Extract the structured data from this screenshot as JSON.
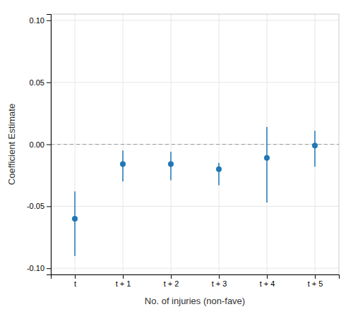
{
  "chart_data": {
    "type": "errorbar",
    "xlabel": "No. of injuries (non-fave)",
    "ylabel": "Coefficient Estimate",
    "categories": [
      "t",
      "t + 1",
      "t + 2",
      "t + 3",
      "t + 4",
      "t + 5"
    ],
    "values": [
      -0.06,
      -0.016,
      -0.016,
      -0.02,
      -0.011,
      -0.001
    ],
    "lower_errors": [
      0.03,
      0.014,
      0.013,
      0.013,
      0.036,
      0.017
    ],
    "upper_errors": [
      0.022,
      0.011,
      0.01,
      0.005,
      0.025,
      0.012
    ],
    "ylim": [
      -0.105,
      0.105
    ],
    "yticks": [
      {
        "value": -0.1,
        "label": "-0.10"
      },
      {
        "value": -0.05,
        "label": "-0.05"
      },
      {
        "value": 0.0,
        "label": "0.00"
      },
      {
        "value": 0.05,
        "label": "0.05"
      },
      {
        "value": 0.1,
        "label": "0.10"
      }
    ],
    "reference_line": 0,
    "grid": true
  }
}
